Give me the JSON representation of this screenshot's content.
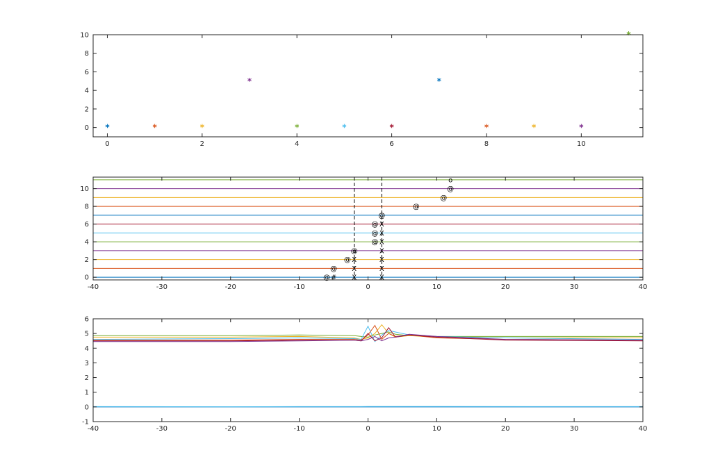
{
  "chart_data": [
    {
      "type": "scatter",
      "title": "",
      "xlabel": "",
      "ylabel": "",
      "xlim": [
        -0.3,
        11.3
      ],
      "ylim": [
        -1,
        10
      ],
      "xticks": [
        0,
        2,
        4,
        6,
        8,
        10
      ],
      "yticks": [
        0,
        2,
        4,
        6,
        8,
        10
      ],
      "marker": "*",
      "points": [
        {
          "x": 0,
          "y": 0,
          "color": "#0072BD"
        },
        {
          "x": 1,
          "y": 0,
          "color": "#D95319"
        },
        {
          "x": 2,
          "y": 0,
          "color": "#EDB120"
        },
        {
          "x": 3,
          "y": 5,
          "color": "#7E2F8E"
        },
        {
          "x": 4,
          "y": 0,
          "color": "#77AC30"
        },
        {
          "x": 5,
          "y": 0,
          "color": "#4DBEEE"
        },
        {
          "x": 6,
          "y": 0,
          "color": "#A2142F"
        },
        {
          "x": 7,
          "y": 5,
          "color": "#0072BD"
        },
        {
          "x": 8,
          "y": 0,
          "color": "#D95319"
        },
        {
          "x": 9,
          "y": 0,
          "color": "#EDB120"
        },
        {
          "x": 10,
          "y": 0,
          "color": "#7E2F8E"
        },
        {
          "x": 11,
          "y": 10,
          "color": "#77AC30"
        }
      ]
    },
    {
      "type": "line",
      "title": "",
      "xlabel": "",
      "ylabel": "",
      "xlim": [
        -40,
        40
      ],
      "ylim": [
        -0.3,
        11.3
      ],
      "xticks": [
        -40,
        -30,
        -20,
        -10,
        0,
        10,
        20,
        30,
        40
      ],
      "yticks": [
        0,
        2,
        4,
        6,
        8,
        10
      ],
      "hlines": [
        {
          "y": 0,
          "color": "#0072BD"
        },
        {
          "y": 1,
          "color": "#D95319"
        },
        {
          "y": 2,
          "color": "#EDB120"
        },
        {
          "y": 3,
          "color": "#7E2F8E"
        },
        {
          "y": 4,
          "color": "#77AC30"
        },
        {
          "y": 5,
          "color": "#4DBEEE"
        },
        {
          "y": 6,
          "color": "#A2142F"
        },
        {
          "y": 7,
          "color": "#0072BD"
        },
        {
          "y": 8,
          "color": "#D95319"
        },
        {
          "y": 9,
          "color": "#EDB120"
        },
        {
          "y": 10,
          "color": "#7E2F8E"
        },
        {
          "y": 11,
          "color": "#77AC30"
        }
      ],
      "vlines": [
        {
          "x": -2,
          "style": "dashed",
          "color": "#000000"
        },
        {
          "x": 2,
          "style": "dashed",
          "color": "#000000"
        }
      ],
      "symbols": [
        {
          "x": -6,
          "y": 0,
          "s": "@"
        },
        {
          "x": -5,
          "y": 0,
          "s": "#"
        },
        {
          "x": -2,
          "y": 0,
          "s": "X"
        },
        {
          "x": 2,
          "y": 0,
          "s": "X"
        },
        {
          "x": -5,
          "y": 1,
          "s": "@"
        },
        {
          "x": -2,
          "y": 1,
          "s": "X"
        },
        {
          "x": 2,
          "y": 1,
          "s": "X"
        },
        {
          "x": -3,
          "y": 2,
          "s": "@"
        },
        {
          "x": -2,
          "y": 2,
          "s": "X"
        },
        {
          "x": 2,
          "y": 2,
          "s": "X"
        },
        {
          "x": -2,
          "y": 3,
          "s": "@"
        },
        {
          "x": 2,
          "y": 3,
          "s": "X"
        },
        {
          "x": 1,
          "y": 4,
          "s": "@"
        },
        {
          "x": 2,
          "y": 4,
          "s": "X"
        },
        {
          "x": 1,
          "y": 5,
          "s": "@"
        },
        {
          "x": 2,
          "y": 5,
          "s": "X"
        },
        {
          "x": 1,
          "y": 6,
          "s": "@"
        },
        {
          "x": 2,
          "y": 6,
          "s": "X"
        },
        {
          "x": 2,
          "y": 7,
          "s": "@"
        },
        {
          "x": 7,
          "y": 8,
          "s": "@"
        },
        {
          "x": 11,
          "y": 9,
          "s": "@"
        },
        {
          "x": 12,
          "y": 10,
          "s": "@"
        },
        {
          "x": 12,
          "y": 11,
          "s": "o"
        }
      ]
    },
    {
      "type": "line",
      "title": "",
      "xlabel": "",
      "ylabel": "",
      "xlim": [
        -40,
        40
      ],
      "ylim": [
        -1,
        6
      ],
      "xticks": [
        -40,
        -30,
        -20,
        -10,
        0,
        10,
        20,
        30,
        40
      ],
      "yticks": [
        -1,
        0,
        1,
        2,
        3,
        4,
        5,
        6
      ],
      "series": [
        {
          "color": "#0072BD",
          "x": [
            -40,
            -20,
            -10,
            -1,
            0,
            40
          ],
          "y": [
            0,
            0,
            0,
            0,
            0,
            0
          ]
        },
        {
          "color": "#4DBEEE",
          "x": [
            -40,
            -20,
            -10,
            -1,
            0,
            40
          ],
          "y": [
            0.02,
            0.01,
            0.02,
            0.02,
            0.03,
            0.02
          ]
        },
        {
          "color": "#77AC30",
          "x": [
            -40,
            -20,
            -10,
            -2,
            -1,
            0,
            1,
            2,
            3,
            4,
            6,
            10,
            20,
            40
          ],
          "y": [
            4.85,
            4.85,
            4.9,
            4.85,
            4.8,
            4.75,
            4.9,
            5.0,
            5.1,
            4.95,
            4.85,
            4.8,
            4.8,
            4.8
          ]
        },
        {
          "color": "#EDB120",
          "x": [
            -40,
            -20,
            -10,
            -2,
            -1,
            0,
            1,
            2,
            3,
            4,
            6,
            10,
            20,
            40
          ],
          "y": [
            4.75,
            4.75,
            4.8,
            4.7,
            4.6,
            4.7,
            5.0,
            5.6,
            5.0,
            4.75,
            4.85,
            4.75,
            4.7,
            4.7
          ]
        },
        {
          "color": "#4DBEEE",
          "x": [
            -40,
            -20,
            -10,
            -2,
            -1,
            0,
            1,
            2,
            3,
            4,
            6,
            10,
            20,
            40
          ],
          "y": [
            4.6,
            4.65,
            4.7,
            4.65,
            4.6,
            5.5,
            4.45,
            4.9,
            5.2,
            5.1,
            4.9,
            4.8,
            4.7,
            4.6
          ]
        },
        {
          "color": "#D95319",
          "x": [
            -40,
            -20,
            -10,
            -2,
            -1,
            0,
            1,
            2,
            3,
            4,
            6,
            10,
            20,
            40
          ],
          "y": [
            4.55,
            4.55,
            4.6,
            4.6,
            4.55,
            4.9,
            5.55,
            4.6,
            5.0,
            4.8,
            4.9,
            4.7,
            4.6,
            4.55
          ]
        },
        {
          "color": "#A2142F",
          "x": [
            -40,
            -20,
            -10,
            -2,
            -1,
            0,
            1,
            2,
            3,
            4,
            6,
            10,
            20,
            40
          ],
          "y": [
            4.5,
            4.5,
            4.55,
            4.55,
            4.5,
            5.0,
            4.5,
            4.7,
            5.4,
            4.75,
            4.9,
            4.75,
            4.55,
            4.5
          ]
        },
        {
          "color": "#7E2F8E",
          "x": [
            -40,
            -20,
            -10,
            -2,
            -1,
            0,
            1,
            2,
            3,
            4,
            6,
            10,
            20,
            40
          ],
          "y": [
            4.45,
            4.45,
            4.5,
            4.55,
            4.5,
            4.6,
            4.8,
            4.5,
            4.7,
            4.75,
            4.95,
            4.8,
            4.6,
            4.55
          ]
        }
      ]
    }
  ]
}
